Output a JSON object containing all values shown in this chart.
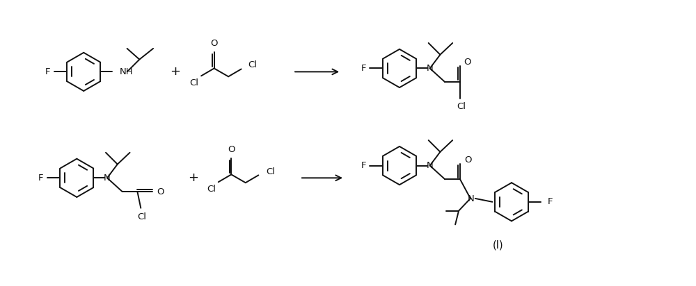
{
  "background_color": "#ffffff",
  "line_color": "#111111",
  "text_color": "#111111",
  "line_width": 1.4,
  "font_size": 9.5,
  "fig_width": 10.0,
  "fig_height": 4.12,
  "xlim": [
    0,
    10
  ],
  "ylim": [
    0,
    4.12
  ]
}
